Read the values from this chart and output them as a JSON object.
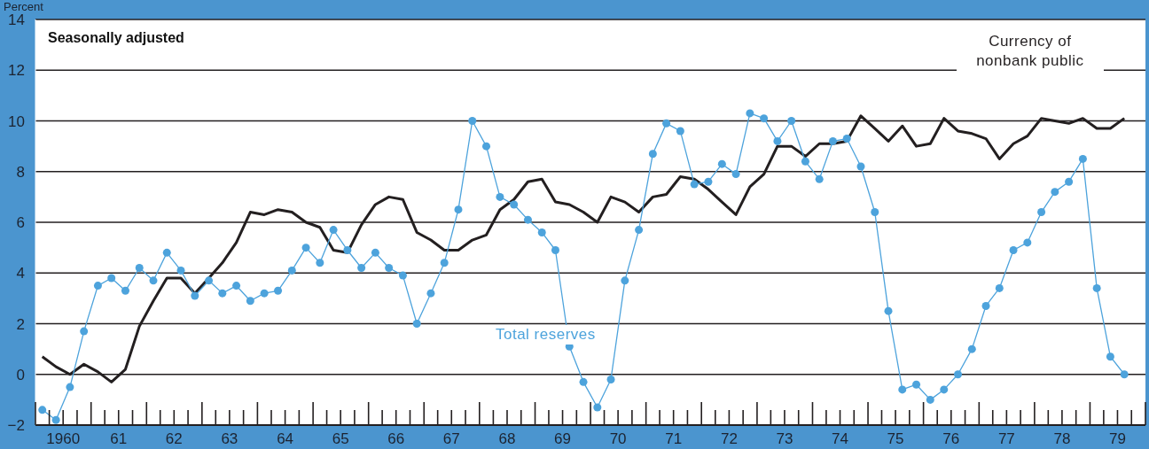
{
  "chart_data": {
    "type": "line",
    "ylabel": "Percent",
    "annotations": [
      "Seasonally adjusted"
    ],
    "x": [
      "1960-02-15",
      "1960-05-15",
      "1960-08-15",
      "1960-11-15",
      "1961-02-15",
      "1961-05-15",
      "1961-08-15",
      "1961-11-15",
      "1962-02-15",
      "1962-05-15",
      "1962-08-15",
      "1962-11-15",
      "1963-02-15",
      "1963-05-15",
      "1963-08-15",
      "1963-11-15",
      "1964-02-15",
      "1964-05-15",
      "1964-08-15",
      "1964-11-15",
      "1965-02-15",
      "1965-05-15",
      "1965-08-15",
      "1965-11-15",
      "1966-02-15",
      "1966-05-15",
      "1966-08-15",
      "1966-11-15",
      "1967-02-15",
      "1967-05-15",
      "1967-08-15",
      "1967-11-15",
      "1968-02-15",
      "1968-05-15",
      "1968-08-15",
      "1968-11-15",
      "1969-02-15",
      "1969-05-15",
      "1969-08-15",
      "1969-11-15",
      "1970-02-15",
      "1970-05-15",
      "1970-08-15",
      "1970-11-15",
      "1971-02-15",
      "1971-05-15",
      "1971-08-15",
      "1971-11-15",
      "1972-02-15",
      "1972-05-15",
      "1972-08-15",
      "1972-11-15",
      "1973-02-15",
      "1973-05-15",
      "1973-08-15",
      "1973-11-15",
      "1974-02-15",
      "1974-05-15",
      "1974-08-15",
      "1974-11-15",
      "1975-02-15",
      "1975-05-15",
      "1975-08-15",
      "1975-11-15",
      "1976-02-15",
      "1976-05-15",
      "1976-08-15",
      "1976-11-15",
      "1977-02-15",
      "1977-05-15",
      "1977-08-15",
      "1977-11-15",
      "1978-02-15",
      "1978-05-15",
      "1978-08-15",
      "1978-11-15",
      "1979-02-15",
      "1979-05-15",
      "1979-08-15"
    ],
    "series": [
      {
        "name": "Currency of nonbank public",
        "color": "#231f20",
        "marker": "none",
        "values": [
          0.7,
          0.3,
          0.0,
          0.4,
          0.1,
          -0.3,
          0.2,
          1.9,
          2.9,
          3.8,
          3.8,
          3.2,
          3.8,
          4.4,
          5.2,
          6.4,
          6.3,
          6.5,
          6.4,
          6.0,
          5.8,
          4.9,
          4.8,
          5.9,
          6.7,
          7.0,
          6.9,
          5.6,
          5.3,
          4.9,
          4.9,
          5.3,
          5.5,
          6.5,
          6.9,
          7.6,
          7.7,
          6.8,
          6.7,
          6.4,
          6.0,
          7.0,
          6.8,
          6.4,
          7.0,
          7.1,
          7.8,
          7.7,
          7.3,
          6.8,
          6.3,
          7.4,
          7.9,
          9.0,
          9.0,
          8.6,
          9.1,
          9.1,
          9.2,
          10.2,
          9.7,
          9.2,
          9.8,
          9.0,
          9.1,
          10.1,
          9.6,
          9.5,
          9.3,
          8.5,
          9.1,
          9.4,
          10.1,
          10.0,
          9.9,
          10.1,
          9.7,
          9.7,
          10.1
        ]
      },
      {
        "name": "Total reserves",
        "color": "#4da3dc",
        "marker": "circle",
        "values": [
          -1.4,
          -1.8,
          -0.5,
          1.7,
          3.5,
          3.8,
          3.3,
          4.2,
          3.7,
          4.8,
          4.1,
          3.1,
          3.7,
          3.2,
          3.5,
          2.9,
          3.2,
          3.3,
          4.1,
          5.0,
          4.4,
          5.7,
          4.9,
          4.2,
          4.8,
          4.2,
          3.9,
          2.0,
          3.2,
          4.4,
          6.5,
          10.0,
          9.0,
          7.0,
          6.7,
          6.1,
          5.6,
          4.9,
          1.1,
          -0.3,
          -1.3,
          -0.2,
          3.7,
          5.7,
          8.7,
          9.9,
          9.6,
          7.5,
          7.6,
          8.3,
          7.9,
          10.3,
          10.1,
          9.2,
          10.0,
          8.4,
          7.7,
          9.2,
          9.3,
          8.2,
          6.4,
          2.5,
          -0.6,
          -0.4,
          -1.0,
          -0.6,
          0.0,
          1.0,
          2.7,
          3.4,
          4.9,
          5.2,
          6.4,
          7.2,
          7.6,
          8.5,
          3.4,
          0.7,
          0.0
        ]
      }
    ],
    "xlim": [
      "1960-01-01",
      "1980-01-01"
    ],
    "xticks": [
      {
        "value": "1960-07-01",
        "label": "1960"
      },
      {
        "value": "1961-07-01",
        "label": "61"
      },
      {
        "value": "1962-07-01",
        "label": "62"
      },
      {
        "value": "1963-07-01",
        "label": "63"
      },
      {
        "value": "1964-07-01",
        "label": "64"
      },
      {
        "value": "1965-07-01",
        "label": "65"
      },
      {
        "value": "1966-07-01",
        "label": "66"
      },
      {
        "value": "1967-07-01",
        "label": "67"
      },
      {
        "value": "1968-07-01",
        "label": "68"
      },
      {
        "value": "1969-07-01",
        "label": "69"
      },
      {
        "value": "1970-07-01",
        "label": "70"
      },
      {
        "value": "1971-07-01",
        "label": "71"
      },
      {
        "value": "1972-07-01",
        "label": "72"
      },
      {
        "value": "1973-07-01",
        "label": "73"
      },
      {
        "value": "1974-07-01",
        "label": "74"
      },
      {
        "value": "1975-07-01",
        "label": "75"
      },
      {
        "value": "1976-07-01",
        "label": "76"
      },
      {
        "value": "1977-07-01",
        "label": "77"
      },
      {
        "value": "1978-07-01",
        "label": "78"
      },
      {
        "value": "1979-07-01",
        "label": "79"
      }
    ],
    "ylim": [
      -2,
      14
    ],
    "yticks": [
      {
        "value": -2,
        "label": "−2"
      },
      0,
      2,
      4,
      6,
      8,
      10,
      12,
      14
    ],
    "grid": "y"
  }
}
